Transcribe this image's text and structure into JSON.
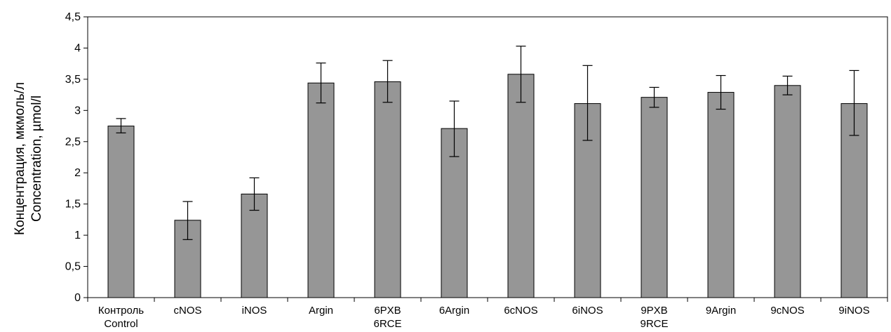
{
  "chart_data": {
    "type": "bar",
    "ylabel_lines": [
      "Концентрация, мкмоль/л",
      "Concentration, µmol/l"
    ],
    "ylim": [
      0,
      4.5
    ],
    "ytick_step": 0.5,
    "ytick_labels": [
      "0",
      "0,5",
      "1",
      "1,5",
      "2",
      "2,5",
      "3",
      "3,5",
      "4",
      "4,5"
    ],
    "grid": false,
    "bar_color": "#969696",
    "categories": [
      {
        "line1": "Контроль",
        "line2": "Control"
      },
      {
        "line1": "cNOS",
        "line2": ""
      },
      {
        "line1": "iNOS",
        "line2": ""
      },
      {
        "line1": "Argin",
        "line2": ""
      },
      {
        "line1": "6PXB",
        "line2": "6RCE"
      },
      {
        "line1": "6Argin",
        "line2": ""
      },
      {
        "line1": "6cNOS",
        "line2": ""
      },
      {
        "line1": "6iNOS",
        "line2": ""
      },
      {
        "line1": "9PXB",
        "line2": "9RCE"
      },
      {
        "line1": "9Argin",
        "line2": ""
      },
      {
        "line1": "9cNOS",
        "line2": ""
      },
      {
        "line1": "9iNOS",
        "line2": ""
      }
    ],
    "values": [
      2.75,
      1.24,
      1.66,
      3.44,
      3.46,
      2.71,
      3.58,
      3.11,
      3.21,
      3.29,
      3.4,
      3.11
    ],
    "error_low": [
      2.64,
      0.93,
      1.4,
      3.12,
      3.13,
      2.26,
      3.13,
      2.52,
      3.05,
      3.02,
      3.25,
      2.6
    ],
    "error_high": [
      2.87,
      1.54,
      1.92,
      3.76,
      3.8,
      3.15,
      4.03,
      3.72,
      3.37,
      3.56,
      3.55,
      3.64
    ]
  }
}
